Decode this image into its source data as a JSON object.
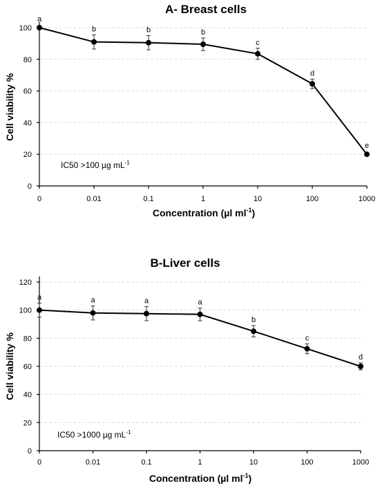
{
  "chart_data": [
    {
      "type": "line",
      "title": "A- Breast cells",
      "xlabel": "Concentration (µl ml",
      "xlabel_sup": "-1",
      "xlabel_close": ")",
      "ylabel": "Cell viability %",
      "categories": [
        "0",
        "0.01",
        "0.1",
        "1",
        "10",
        "100",
        "1000"
      ],
      "y_ticks": [
        0,
        20,
        40,
        60,
        80,
        100
      ],
      "ylim": [
        0,
        100
      ],
      "grid": true,
      "series": [
        {
          "values": [
            100,
            91,
            90.5,
            89.5,
            83.5,
            64.5,
            20
          ],
          "errors": [
            0,
            4.5,
            4.5,
            4,
            3.5,
            3,
            0
          ],
          "labels": [
            "a",
            "b",
            "b",
            "b",
            "c",
            "d",
            "e"
          ]
        }
      ],
      "annotation": "IC50 >100 µg mL",
      "annotation_sup": "-1"
    },
    {
      "type": "line",
      "title": "B-Liver cells",
      "xlabel": "Concentration (µl ml",
      "xlabel_sup": "-1",
      "xlabel_close": ")",
      "ylabel": "Cell viability %",
      "categories": [
        "0",
        "0.01",
        "0.1",
        "1",
        "10",
        "100",
        "1000"
      ],
      "y_ticks": [
        0,
        20,
        40,
        60,
        80,
        100,
        120
      ],
      "ylim": [
        0,
        120
      ],
      "grid": true,
      "series": [
        {
          "values": [
            100,
            98,
            97.5,
            97,
            85,
            72.5,
            60
          ],
          "errors": [
            5,
            5,
            5,
            4.5,
            4,
            3.5,
            2.5
          ],
          "labels": [
            "a",
            "a",
            "a",
            "a",
            "b",
            "c",
            "d"
          ]
        }
      ],
      "annotation": "IC50 >1000 µg mL",
      "annotation_sup": "-1"
    }
  ]
}
